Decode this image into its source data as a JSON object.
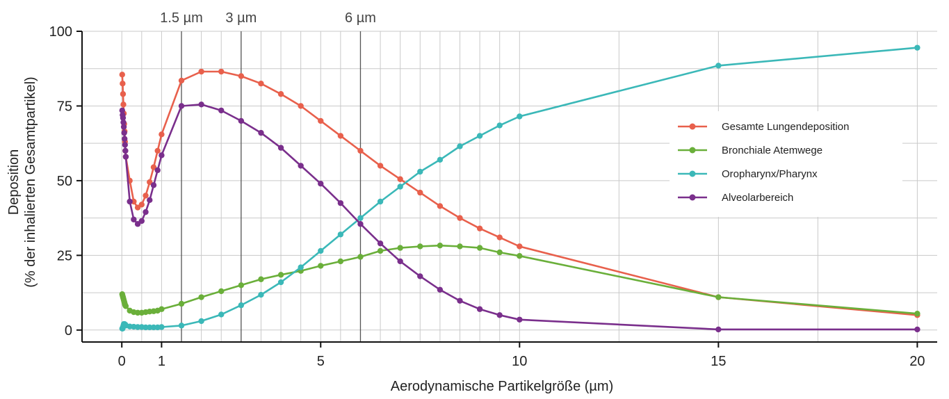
{
  "chart_data": {
    "type": "line",
    "xlabel": "Aerodynamische Partikelgröße (µm)",
    "ylabel_line1": "Deposition",
    "ylabel_line2": "(% der inhalierten Gesamtpartikel)",
    "xlim": [
      -1,
      20.5
    ],
    "ylim": [
      -4,
      100
    ],
    "x_ticks": [
      0,
      1,
      5,
      10,
      15,
      20
    ],
    "x_tick_labels": [
      "0",
      "1",
      "5",
      "10",
      "15",
      "20"
    ],
    "y_ticks": [
      0,
      25,
      50,
      75,
      100
    ],
    "y_tick_labels": [
      "0",
      "25",
      "50",
      "75",
      "100"
    ],
    "x_grid": [
      0,
      0.5,
      1,
      1.5,
      2,
      2.5,
      3,
      3.5,
      4,
      4.5,
      5,
      5.5,
      6,
      6.5,
      7,
      7.5,
      8,
      8.5,
      9,
      9.5,
      10,
      12.5,
      15,
      17.5,
      20
    ],
    "y_grid": [
      0,
      12.5,
      25,
      37.5,
      50,
      62.5,
      75,
      87.5,
      100
    ],
    "grid": true,
    "legend_position": "right",
    "reference_lines": [
      {
        "x": 1.5,
        "label": "1.5 µm"
      },
      {
        "x": 3,
        "label": "3 µm"
      },
      {
        "x": 6,
        "label": "6 µm"
      }
    ],
    "series": [
      {
        "name": "Gesamte Lungendeposition",
        "color": "#e8604c",
        "x": [
          0.01,
          0.02,
          0.03,
          0.04,
          0.05,
          0.06,
          0.07,
          0.08,
          0.09,
          0.1,
          0.2,
          0.3,
          0.4,
          0.5,
          0.6,
          0.7,
          0.8,
          0.9,
          1.0,
          1.5,
          2.0,
          2.5,
          3.0,
          3.5,
          4.0,
          4.5,
          5.0,
          5.5,
          6.0,
          6.5,
          7.0,
          7.5,
          8.0,
          8.5,
          9.0,
          9.5,
          10.0,
          15.0,
          20.0
        ],
        "y": [
          85.5,
          82.5,
          79,
          75.5,
          72.5,
          69,
          66.5,
          63,
          60,
          58,
          50,
          43,
          41,
          42,
          45,
          49.5,
          54.5,
          60,
          65.5,
          83.5,
          86.5,
          86.5,
          85,
          82.5,
          79,
          75,
          70,
          65,
          60,
          55,
          50.5,
          46,
          41.5,
          37.5,
          34,
          31,
          28,
          11,
          5
        ]
      },
      {
        "name": "Bronchiale Atemwege",
        "color": "#6aaf3a",
        "x": [
          0.01,
          0.02,
          0.03,
          0.04,
          0.05,
          0.06,
          0.07,
          0.08,
          0.09,
          0.1,
          0.2,
          0.3,
          0.4,
          0.5,
          0.6,
          0.7,
          0.8,
          0.9,
          1.0,
          1.5,
          2.0,
          2.5,
          3.0,
          3.5,
          4.0,
          4.5,
          5.0,
          5.5,
          6.0,
          6.5,
          7.0,
          7.5,
          8.0,
          8.5,
          9.0,
          9.5,
          10.0,
          15.0,
          20.0
        ],
        "y": [
          12,
          11.5,
          11,
          10.5,
          10,
          9.5,
          9,
          8.5,
          8.2,
          8,
          6.5,
          6,
          5.8,
          5.8,
          6,
          6.2,
          6.3,
          6.5,
          7,
          8.8,
          11,
          13,
          15,
          17,
          18.5,
          19.8,
          21.5,
          23,
          24.5,
          26.5,
          27.5,
          28,
          28.3,
          28,
          27.5,
          26,
          24.8,
          11,
          5.5
        ]
      },
      {
        "name": "Oropharynx/Pharynx",
        "color": "#3bb8b8",
        "x": [
          0.01,
          0.02,
          0.03,
          0.04,
          0.05,
          0.06,
          0.07,
          0.08,
          0.09,
          0.1,
          0.2,
          0.3,
          0.4,
          0.5,
          0.6,
          0.7,
          0.8,
          0.9,
          1.0,
          1.5,
          2.0,
          2.5,
          3.0,
          3.5,
          4.0,
          4.5,
          5.0,
          5.5,
          6.0,
          6.5,
          7.0,
          7.5,
          8.0,
          8.5,
          9.0,
          9.5,
          10.0,
          15.0,
          20.0
        ],
        "y": [
          0.5,
          0.5,
          1,
          1.5,
          2,
          2,
          2,
          1.8,
          1.8,
          1.5,
          1.2,
          1.1,
          1,
          1,
          0.9,
          0.9,
          0.9,
          0.9,
          1,
          1.5,
          3,
          5.2,
          8.3,
          11.8,
          16,
          21,
          26.5,
          32,
          37.5,
          43,
          48,
          53,
          57,
          61.5,
          65,
          68.5,
          71.5,
          88.5,
          94.5
        ]
      },
      {
        "name": "Alveolarbereich",
        "color": "#7a2f8c",
        "x": [
          0.01,
          0.02,
          0.03,
          0.04,
          0.05,
          0.06,
          0.07,
          0.08,
          0.09,
          0.1,
          0.2,
          0.3,
          0.4,
          0.5,
          0.6,
          0.7,
          0.8,
          0.9,
          1.0,
          1.5,
          2.0,
          2.5,
          3.0,
          3.5,
          4.0,
          4.5,
          5.0,
          5.5,
          6.0,
          6.5,
          7.0,
          7.5,
          8.0,
          8.5,
          9.0,
          9.5,
          10.0,
          15.0,
          20.0
        ],
        "y": [
          73.5,
          72,
          71,
          69.5,
          68,
          66,
          64,
          62,
          60,
          58,
          43,
          37,
          35.5,
          36.5,
          39.5,
          43.5,
          48.5,
          53.5,
          58.5,
          75,
          75.5,
          73.5,
          70,
          66,
          61,
          55,
          49,
          42.5,
          35.5,
          29,
          23,
          18,
          13.5,
          9.8,
          7,
          5,
          3.5,
          0.2,
          0.2
        ]
      }
    ]
  }
}
